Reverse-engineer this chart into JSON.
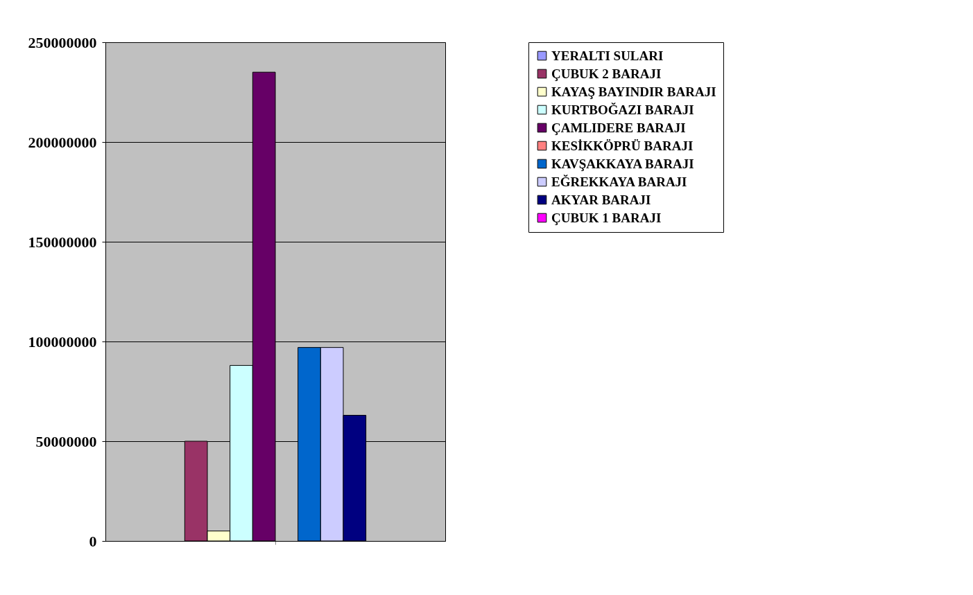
{
  "chart_data": {
    "type": "bar",
    "categories": [
      null
    ],
    "series": [
      {
        "name": "YERALTI SULARI",
        "color": "#9999ff",
        "values": [
          0
        ]
      },
      {
        "name": "ÇUBUK 2 BARAJI",
        "color": "#993366",
        "values": [
          50000000
        ]
      },
      {
        "name": "KAYAŞ BAYINDIR BARAJI",
        "color": "#ffffcc",
        "values": [
          5000000
        ]
      },
      {
        "name": "KURTBOĞAZI BARAJI",
        "color": "#ccffff",
        "values": [
          88000000
        ]
      },
      {
        "name": "ÇAMLIDERE BARAJI",
        "color": "#660066",
        "values": [
          235000000
        ]
      },
      {
        "name": "KESİKKÖPRÜ BARAJI",
        "color": "#ff8080",
        "values": [
          0
        ]
      },
      {
        "name": "KAVŞAKKAYA BARAJI",
        "color": "#0066cc",
        "values": [
          97000000
        ]
      },
      {
        "name": "EĞREKKAYA BARAJI",
        "color": "#ccccff",
        "values": [
          97000000
        ]
      },
      {
        "name": "AKYAR BARAJI",
        "color": "#000080",
        "values": [
          63000000
        ]
      },
      {
        "name": "ÇUBUK 1 BARAJI",
        "color": "#ff00ff",
        "values": [
          0
        ]
      }
    ],
    "ylim": [
      0,
      250000000
    ],
    "yticks": [
      0,
      50000000,
      100000000,
      150000000,
      200000000,
      250000000
    ],
    "grid": "y",
    "legend": "right",
    "tick_labels": "y"
  }
}
